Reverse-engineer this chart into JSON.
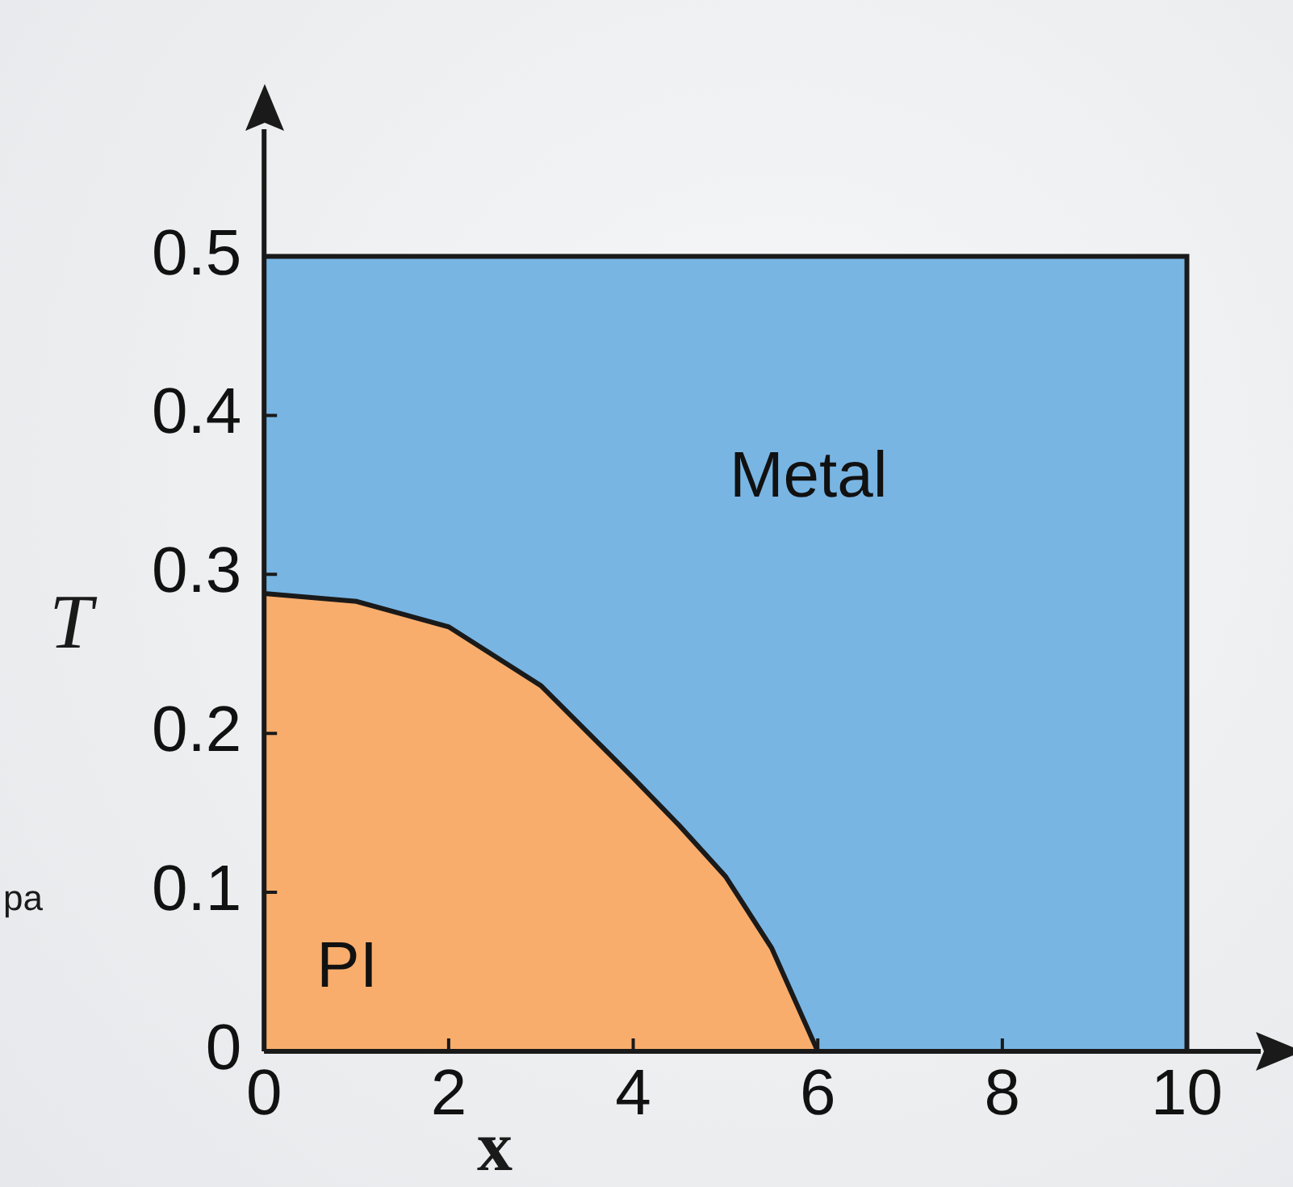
{
  "chart_data": {
    "type": "area",
    "xlabel": "x",
    "ylabel": "T",
    "xlim": [
      0,
      10.8
    ],
    "ylim": [
      0,
      0.58
    ],
    "xticks": [
      0,
      2,
      4,
      6,
      8,
      10
    ],
    "yticks": [
      0,
      0.1,
      0.2,
      0.3,
      0.4,
      0.5
    ],
    "grid": false,
    "legend": false,
    "series": [
      {
        "name": "Metal",
        "color": "#78b5e3",
        "x": [
          0,
          10,
          10
        ],
        "values": [
          0.5,
          0.5,
          0
        ]
      },
      {
        "name": "PI",
        "color": "#f9ad6c",
        "x": [
          0,
          1,
          2,
          3,
          4,
          4.5,
          5,
          5.5,
          6
        ],
        "values": [
          0.288,
          0.283,
          0.267,
          0.23,
          0.172,
          0.142,
          0.11,
          0.065,
          0
        ]
      }
    ],
    "annotations": [
      "pa"
    ]
  }
}
